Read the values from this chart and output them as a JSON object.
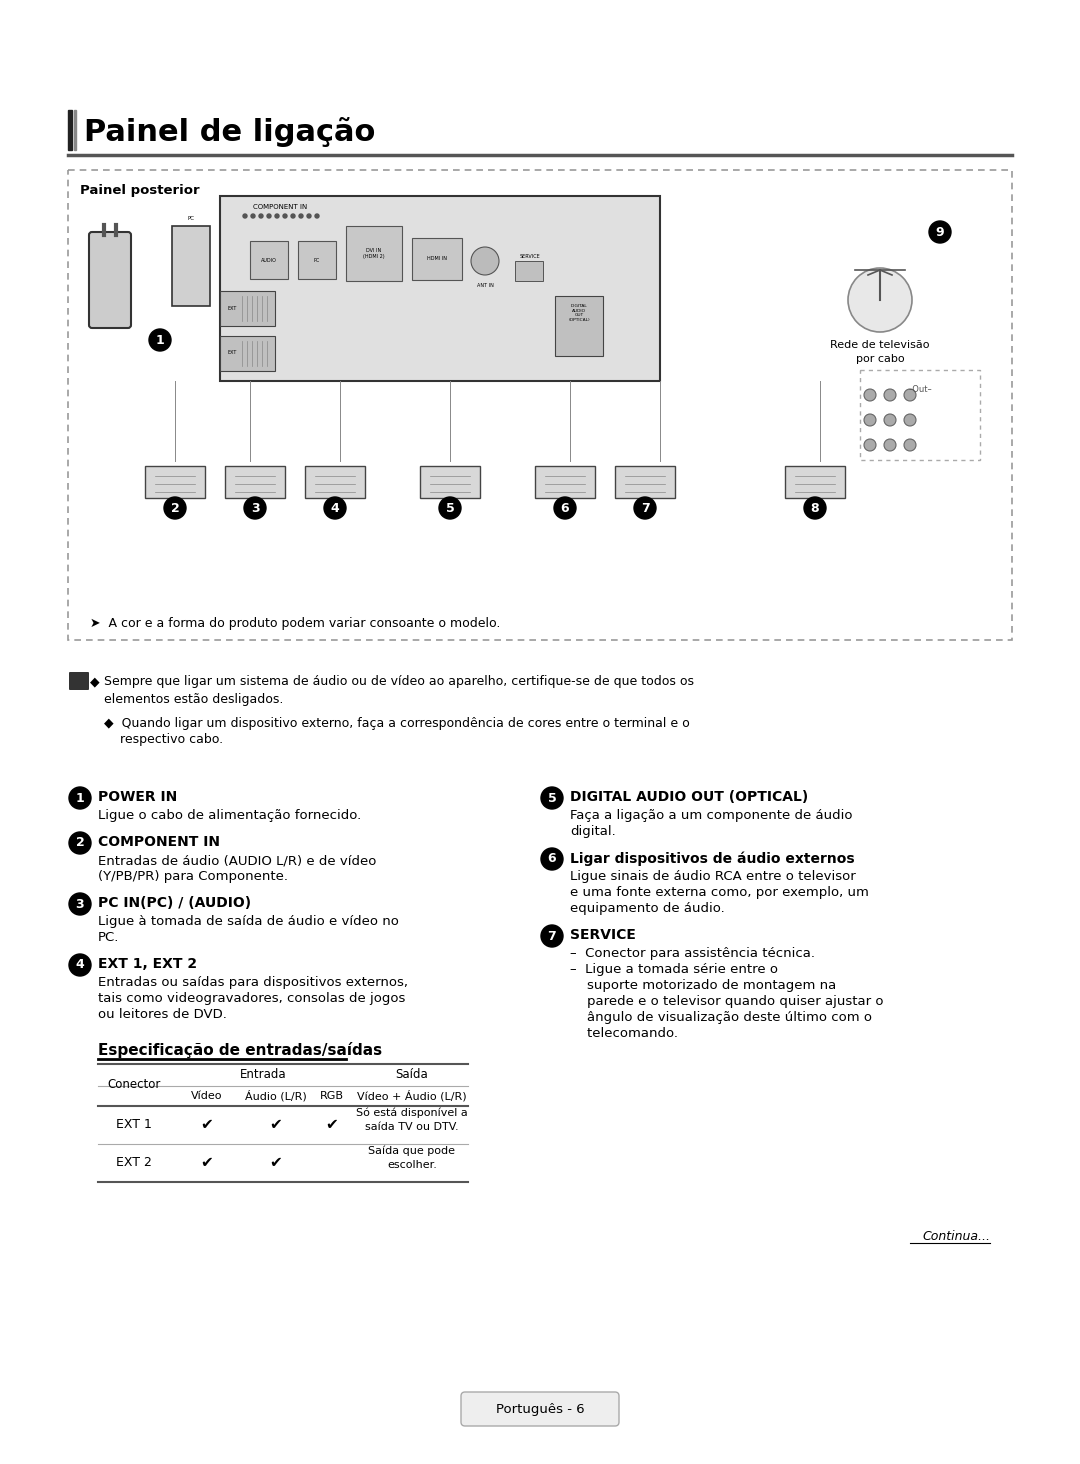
{
  "title": "Painel de ligação",
  "panel_label": "Painel posterior",
  "bg_color": "#ffffff",
  "title_color": "#000000",
  "note_text_line1": "Sempre que ligar um sistema de áudio ou de vídeo ao aparelho, certifique-se de que todos os",
  "note_text_line2": "elementos estão desligados.",
  "note_text_line3": "Quando ligar um dispositivo externo, faça a correspondência de cores entre o terminal e o",
  "note_text_line4": "respectivo cabo.",
  "items_left": [
    {
      "num": "1",
      "title": "POWER IN",
      "body": [
        "Ligue o cabo de alimentação fornecido."
      ]
    },
    {
      "num": "2",
      "title": "COMPONENT IN",
      "body": [
        "Entradas de áudio (AUDIO L/R) e de vídeo",
        "(Y/PB/PR) para Componente."
      ]
    },
    {
      "num": "3",
      "title": "PC IN(PC) / (AUDIO)",
      "body": [
        "Ligue à tomada de saída de áudio e vídeo no",
        "PC."
      ]
    },
    {
      "num": "4",
      "title": "EXT 1, EXT 2",
      "body": [
        "Entradas ou saídas para dispositivos externos,",
        "tais como videogravadores, consolas de jogos",
        "ou leitores de DVD."
      ]
    }
  ],
  "items_right": [
    {
      "num": "5",
      "title": "DIGITAL AUDIO OUT (OPTICAL)",
      "body": [
        "Faça a ligação a um componente de áudio",
        "digital."
      ]
    },
    {
      "num": "6",
      "title": "Ligar dispositivos de áudio externos",
      "body": [
        "Ligue sinais de áudio RCA entre o televisor",
        "e uma fonte externa como, por exemplo, um",
        "equipamento de áudio."
      ]
    },
    {
      "num": "7",
      "title": "SERVICE",
      "body": [
        "–  Conector para assistência técnica.",
        "–  Ligue a tomada série entre o",
        "    suporte motorizado de montagem na",
        "    parede e o televisor quando quiser ajustar o",
        "    ângulo de visualização deste último com o",
        "    telecomando."
      ]
    }
  ],
  "table_title": "Especificação de entradas/saídas",
  "footer_text": "Português - 6",
  "continue_text": "Continua..."
}
